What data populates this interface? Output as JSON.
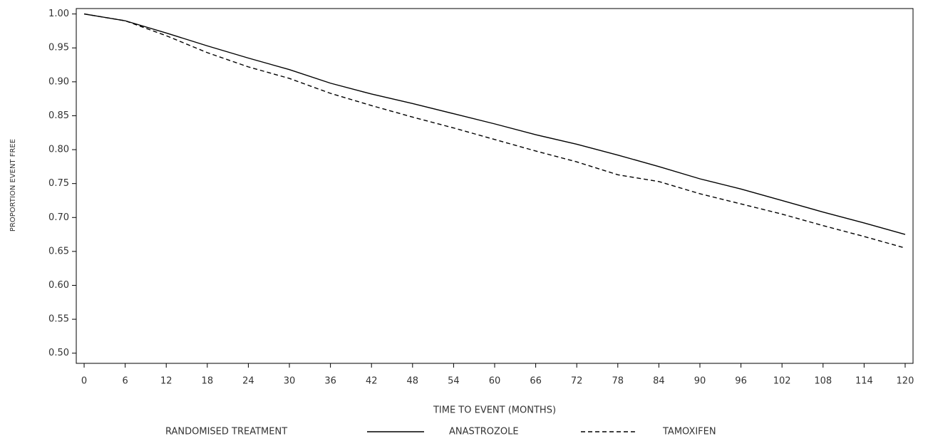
{
  "chart_data": {
    "type": "line",
    "x_label": "TIME TO EVENT (MONTHS)",
    "y_label": "PROPORTION EVENT FREE",
    "legend_title": "RANDOMISED TREATMENT",
    "x": [
      0,
      6,
      12,
      18,
      24,
      30,
      36,
      42,
      48,
      54,
      60,
      66,
      72,
      78,
      84,
      90,
      96,
      102,
      108,
      114,
      120
    ],
    "series": [
      {
        "name": "ANASTROZOLE",
        "color": "#000000",
        "dash": "solid",
        "values": [
          1.0,
          0.99,
          0.972,
          0.953,
          0.935,
          0.918,
          0.898,
          0.882,
          0.868,
          0.853,
          0.838,
          0.822,
          0.808,
          0.792,
          0.775,
          0.757,
          0.742,
          0.725,
          0.708,
          0.692,
          0.675
        ]
      },
      {
        "name": "TAMOXIFEN",
        "color": "#000000",
        "dash": "dashed",
        "values": [
          1.0,
          0.99,
          0.968,
          0.943,
          0.922,
          0.905,
          0.883,
          0.865,
          0.848,
          0.832,
          0.815,
          0.798,
          0.782,
          0.763,
          0.753,
          0.735,
          0.72,
          0.705,
          0.688,
          0.672,
          0.655
        ]
      }
    ],
    "xlim": [
      -1.15,
      121.15
    ],
    "ylim": [
      0.485,
      1.008
    ],
    "xticks": [
      0,
      6,
      12,
      18,
      24,
      30,
      36,
      42,
      48,
      54,
      60,
      66,
      72,
      78,
      84,
      90,
      96,
      102,
      108,
      114,
      120
    ],
    "yticks": [
      {
        "value": 1.0,
        "label": "1.00"
      },
      0.95,
      {
        "value": 0.9,
        "label": "0.90"
      },
      0.85,
      {
        "value": 0.8,
        "label": "0.80"
      },
      0.75,
      {
        "value": 0.7,
        "label": "0.70"
      },
      0.65,
      {
        "value": 0.6,
        "label": "0.60"
      },
      0.55,
      {
        "value": 0.5,
        "label": "0.50"
      }
    ],
    "grid": false,
    "legend_position": "bottom"
  }
}
